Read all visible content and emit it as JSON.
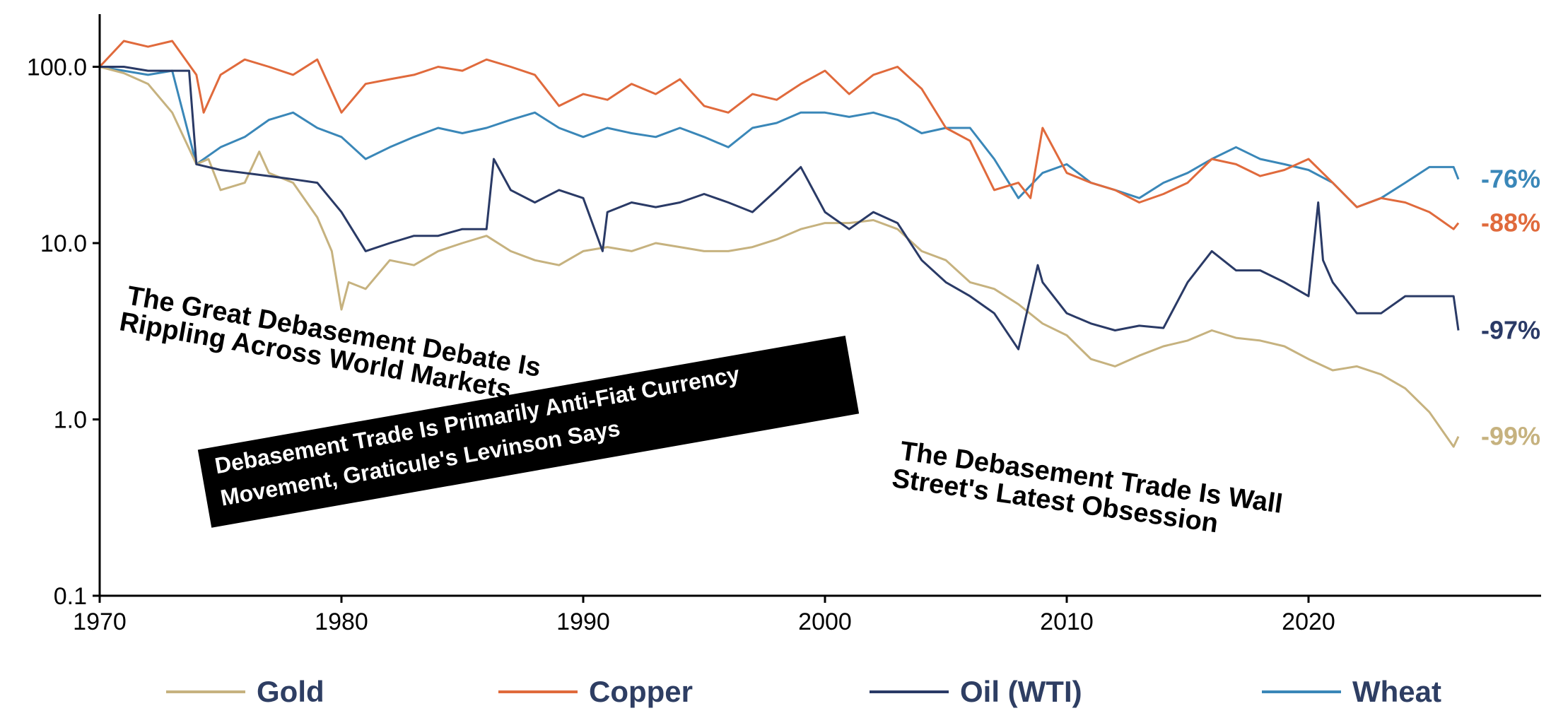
{
  "chart_data": {
    "type": "line",
    "title": "",
    "xlabel": "",
    "ylabel": "",
    "y_scale": "log",
    "xlim": [
      1970,
      2030
    ],
    "ylim": [
      0.1,
      200
    ],
    "x_ticks": [
      "1970",
      "1980",
      "1990",
      "2000",
      "2010",
      "2020"
    ],
    "y_ticks": [
      "0.1",
      "1.0",
      "10.0",
      "100.0"
    ],
    "grid": false,
    "legend_position": "bottom",
    "series": [
      {
        "name": "Gold",
        "color": "#c6b27f",
        "end_label": "-99%",
        "points": [
          [
            1970,
            100
          ],
          [
            1971,
            92
          ],
          [
            1972,
            80
          ],
          [
            1973,
            55
          ],
          [
            1974,
            28
          ],
          [
            1974.5,
            30
          ],
          [
            1975,
            20
          ],
          [
            1976,
            22
          ],
          [
            1976.6,
            33
          ],
          [
            1977,
            25
          ],
          [
            1978,
            22
          ],
          [
            1979,
            14
          ],
          [
            1979.6,
            9
          ],
          [
            1980,
            4.2
          ],
          [
            1980.3,
            6
          ],
          [
            1981,
            5.5
          ],
          [
            1982,
            8
          ],
          [
            1983,
            7.5
          ],
          [
            1984,
            9
          ],
          [
            1985,
            10
          ],
          [
            1986,
            11
          ],
          [
            1987,
            9
          ],
          [
            1988,
            8
          ],
          [
            1989,
            7.5
          ],
          [
            1990,
            9
          ],
          [
            1991,
            9.5
          ],
          [
            1992,
            9
          ],
          [
            1993,
            10
          ],
          [
            1994,
            9.5
          ],
          [
            1995,
            9
          ],
          [
            1996,
            9
          ],
          [
            1997,
            9.5
          ],
          [
            1998,
            10.5
          ],
          [
            1999,
            12
          ],
          [
            2000,
            13
          ],
          [
            2001,
            13
          ],
          [
            2002,
            13.5
          ],
          [
            2003,
            12
          ],
          [
            2004,
            9
          ],
          [
            2005,
            8
          ],
          [
            2006,
            6
          ],
          [
            2007,
            5.5
          ],
          [
            2008,
            4.5
          ],
          [
            2009,
            3.5
          ],
          [
            2010,
            3
          ],
          [
            2011,
            2.2
          ],
          [
            2012,
            2
          ],
          [
            2013,
            2.3
          ],
          [
            2014,
            2.6
          ],
          [
            2015,
            2.8
          ],
          [
            2016,
            3.2
          ],
          [
            2017,
            2.9
          ],
          [
            2018,
            2.8
          ],
          [
            2019,
            2.6
          ],
          [
            2020,
            2.2
          ],
          [
            2021,
            1.9
          ],
          [
            2022,
            2
          ],
          [
            2023,
            1.8
          ],
          [
            2024,
            1.5
          ],
          [
            2025,
            1.1
          ],
          [
            2026,
            0.7
          ],
          [
            2026.2,
            0.8
          ]
        ]
      },
      {
        "name": "Copper",
        "color": "#e06a3c",
        "end_label": "-88%",
        "points": [
          [
            1970,
            100
          ],
          [
            1971,
            140
          ],
          [
            1972,
            130
          ],
          [
            1973,
            140
          ],
          [
            1974,
            90
          ],
          [
            1974.3,
            55
          ],
          [
            1975,
            90
          ],
          [
            1976,
            110
          ],
          [
            1977,
            100
          ],
          [
            1978,
            90
          ],
          [
            1979,
            110
          ],
          [
            1980,
            55
          ],
          [
            1981,
            80
          ],
          [
            1982,
            85
          ],
          [
            1983,
            90
          ],
          [
            1984,
            100
          ],
          [
            1985,
            95
          ],
          [
            1986,
            110
          ],
          [
            1987,
            100
          ],
          [
            1988,
            90
          ],
          [
            1989,
            60
          ],
          [
            1990,
            70
          ],
          [
            1991,
            65
          ],
          [
            1992,
            80
          ],
          [
            1993,
            70
          ],
          [
            1994,
            85
          ],
          [
            1995,
            60
          ],
          [
            1996,
            55
          ],
          [
            1997,
            70
          ],
          [
            1998,
            65
          ],
          [
            1999,
            80
          ],
          [
            2000,
            95
          ],
          [
            2001,
            70
          ],
          [
            2002,
            90
          ],
          [
            2003,
            100
          ],
          [
            2004,
            75
          ],
          [
            2005,
            45
          ],
          [
            2006,
            38
          ],
          [
            2007,
            20
          ],
          [
            2008,
            22
          ],
          [
            2008.5,
            18
          ],
          [
            2009,
            45
          ],
          [
            2010,
            25
          ],
          [
            2011,
            22
          ],
          [
            2012,
            20
          ],
          [
            2013,
            17
          ],
          [
            2014,
            19
          ],
          [
            2015,
            22
          ],
          [
            2016,
            30
          ],
          [
            2017,
            28
          ],
          [
            2018,
            24
          ],
          [
            2019,
            26
          ],
          [
            2020,
            30
          ],
          [
            2021,
            22
          ],
          [
            2022,
            16
          ],
          [
            2023,
            18
          ],
          [
            2024,
            17
          ],
          [
            2025,
            15
          ],
          [
            2026,
            12
          ],
          [
            2026.2,
            13
          ]
        ]
      },
      {
        "name": "Oil (WTI)",
        "color": "#2a3a66",
        "end_label": "-97%",
        "points": [
          [
            1970,
            100
          ],
          [
            1971,
            100
          ],
          [
            1972,
            95
          ],
          [
            1973,
            95
          ],
          [
            1973.7,
            95
          ],
          [
            1974,
            28
          ],
          [
            1975,
            26
          ],
          [
            1976,
            25
          ],
          [
            1977,
            24
          ],
          [
            1978,
            23
          ],
          [
            1979,
            22
          ],
          [
            1980,
            15
          ],
          [
            1981,
            9
          ],
          [
            1982,
            10
          ],
          [
            1983,
            11
          ],
          [
            1984,
            11
          ],
          [
            1985,
            12
          ],
          [
            1986,
            12
          ],
          [
            1986.3,
            30
          ],
          [
            1987,
            20
          ],
          [
            1988,
            17
          ],
          [
            1989,
            20
          ],
          [
            1990,
            18
          ],
          [
            1990.8,
            9
          ],
          [
            1991,
            15
          ],
          [
            1992,
            17
          ],
          [
            1993,
            16
          ],
          [
            1994,
            17
          ],
          [
            1995,
            19
          ],
          [
            1996,
            17
          ],
          [
            1997,
            15
          ],
          [
            1998,
            20
          ],
          [
            1999,
            27
          ],
          [
            2000,
            15
          ],
          [
            2001,
            12
          ],
          [
            2002,
            15
          ],
          [
            2003,
            13
          ],
          [
            2004,
            8
          ],
          [
            2005,
            6
          ],
          [
            2006,
            5
          ],
          [
            2007,
            4
          ],
          [
            2008,
            2.5
          ],
          [
            2008.8,
            7.5
          ],
          [
            2009,
            6
          ],
          [
            2010,
            4
          ],
          [
            2011,
            3.5
          ],
          [
            2012,
            3.2
          ],
          [
            2013,
            3.4
          ],
          [
            2014,
            3.3
          ],
          [
            2015,
            6
          ],
          [
            2016,
            9
          ],
          [
            2017,
            7
          ],
          [
            2018,
            7
          ],
          [
            2019,
            6
          ],
          [
            2020,
            5
          ],
          [
            2020.4,
            17
          ],
          [
            2020.6,
            8
          ],
          [
            2021,
            6
          ],
          [
            2022,
            4
          ],
          [
            2023,
            4
          ],
          [
            2024,
            5
          ],
          [
            2025,
            5
          ],
          [
            2026,
            5
          ],
          [
            2026.2,
            3.2
          ]
        ]
      },
      {
        "name": "Wheat",
        "color": "#3a87b8",
        "end_label": "-76%",
        "points": [
          [
            1970,
            100
          ],
          [
            1971,
            95
          ],
          [
            1972,
            90
          ],
          [
            1973,
            95
          ],
          [
            1974,
            28
          ],
          [
            1975,
            35
          ],
          [
            1976,
            40
          ],
          [
            1977,
            50
          ],
          [
            1978,
            55
          ],
          [
            1979,
            45
          ],
          [
            1980,
            40
          ],
          [
            1981,
            30
          ],
          [
            1982,
            35
          ],
          [
            1983,
            40
          ],
          [
            1984,
            45
          ],
          [
            1985,
            42
          ],
          [
            1986,
            45
          ],
          [
            1987,
            50
          ],
          [
            1988,
            55
          ],
          [
            1989,
            45
          ],
          [
            1990,
            40
          ],
          [
            1991,
            45
          ],
          [
            1992,
            42
          ],
          [
            1993,
            40
          ],
          [
            1994,
            45
          ],
          [
            1995,
            40
          ],
          [
            1996,
            35
          ],
          [
            1997,
            45
          ],
          [
            1998,
            48
          ],
          [
            1999,
            55
          ],
          [
            2000,
            55
          ],
          [
            2001,
            52
          ],
          [
            2002,
            55
          ],
          [
            2003,
            50
          ],
          [
            2004,
            42
          ],
          [
            2005,
            45
          ],
          [
            2006,
            45
          ],
          [
            2007,
            30
          ],
          [
            2008,
            18
          ],
          [
            2009,
            25
          ],
          [
            2010,
            28
          ],
          [
            2011,
            22
          ],
          [
            2012,
            20
          ],
          [
            2013,
            18
          ],
          [
            2014,
            22
          ],
          [
            2015,
            25
          ],
          [
            2016,
            30
          ],
          [
            2017,
            35
          ],
          [
            2018,
            30
          ],
          [
            2019,
            28
          ],
          [
            2020,
            26
          ],
          [
            2021,
            22
          ],
          [
            2022,
            16
          ],
          [
            2023,
            18
          ],
          [
            2024,
            22
          ],
          [
            2025,
            27
          ],
          [
            2026,
            27
          ],
          [
            2026.2,
            23
          ]
        ]
      }
    ]
  },
  "headlines": {
    "h1_line1": "The Great Debasement Debate Is",
    "h1_line2": "Rippling Across World Markets",
    "h2_line1": "Debasement Trade Is Primarily Anti-Fiat Currency",
    "h2_line2": "Movement, Graticule's Levinson Says",
    "h3_line1": "The Debasement Trade Is Wall",
    "h3_line2": "Street's Latest Obsession"
  }
}
